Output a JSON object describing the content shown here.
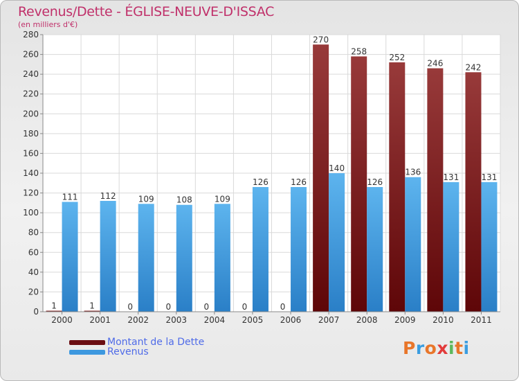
{
  "title": "Revenus/Dette - ÉGLISE-NEUVE-D'ISSAC",
  "subtitle": "(en milliers d'€)",
  "logo": {
    "text": "Proxiti",
    "colors": [
      "#e8762a",
      "#3a9de0",
      "#e8762a",
      "#e23b3b",
      "#5cb85c",
      "#e8762a",
      "#3a9de0"
    ]
  },
  "colors": {
    "dette": "#6b0e12",
    "dette_light": "#983a3a",
    "revenus": "#3d98df",
    "revenus_light": "#5db4ee",
    "title": "#c0306a",
    "legend_text": "#4f6be8"
  },
  "legend": [
    {
      "label": "Montant de la Dette",
      "color_key": "dette"
    },
    {
      "label": "Revenus",
      "color_key": "revenus"
    }
  ],
  "chart_data": {
    "type": "bar",
    "title": "Revenus/Dette - ÉGLISE-NEUVE-D'ISSAC",
    "ylabel": "(en milliers d'€)",
    "categories": [
      "2000",
      "2001",
      "2002",
      "2003",
      "2004",
      "2005",
      "2006",
      "2007",
      "2008",
      "2009",
      "2010",
      "2011"
    ],
    "series": [
      {
        "name": "Montant de la Dette",
        "values": [
          1,
          1,
          0,
          0,
          0,
          0,
          0,
          270,
          258,
          252,
          246,
          242
        ]
      },
      {
        "name": "Revenus",
        "values": [
          111,
          112,
          109,
          108,
          109,
          126,
          126,
          140,
          126,
          136,
          131,
          131
        ]
      }
    ],
    "ylim": [
      0,
      280
    ],
    "yticks": [
      0,
      20,
      40,
      60,
      80,
      100,
      120,
      140,
      160,
      180,
      200,
      220,
      240,
      260,
      280
    ],
    "grid": true,
    "legend_position": "bottom"
  }
}
